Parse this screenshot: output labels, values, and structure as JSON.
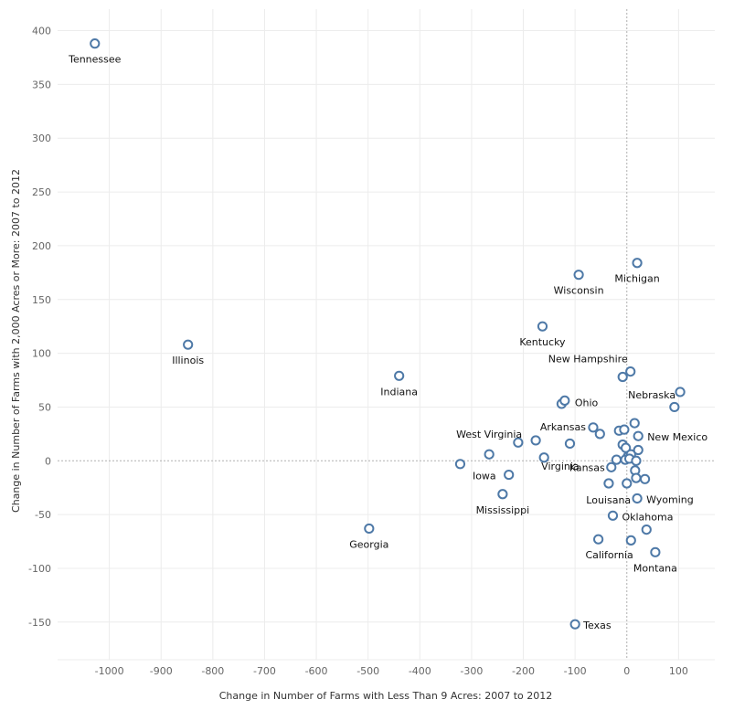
{
  "chart_data": {
    "type": "scatter",
    "title": "",
    "xlabel": "Change in Number of Farms with Less Than 9 Acres:  2007 to 2012",
    "ylabel": "Change in Number of Farms with 2,000 Acres or More:  2007 to 2012",
    "xlim": [
      -1100,
      170
    ],
    "ylim": [
      -185,
      420
    ],
    "xticks": [
      -1000,
      -900,
      -800,
      -700,
      -600,
      -500,
      -400,
      -300,
      -200,
      -100,
      0,
      100
    ],
    "yticks": [
      -150,
      -100,
      -50,
      0,
      50,
      100,
      150,
      200,
      250,
      300,
      350,
      400
    ],
    "grid": true,
    "marker_color": "#4e79a7",
    "points": [
      {
        "x": -1028,
        "y": 388,
        "label": "Tennessee"
      },
      {
        "x": -848,
        "y": 108,
        "label": "Illinois"
      },
      {
        "x": -440,
        "y": 79,
        "label": "Indiana"
      },
      {
        "x": -498,
        "y": -63,
        "label": "Georgia"
      },
      {
        "x": -322,
        "y": -3,
        "label": ""
      },
      {
        "x": -266,
        "y": 6,
        "label": "West Virginia"
      },
      {
        "x": -228,
        "y": -13,
        "label": "Iowa"
      },
      {
        "x": -240,
        "y": -31,
        "label": "Mississippi"
      },
      {
        "x": -210,
        "y": 17,
        "label": ""
      },
      {
        "x": -176,
        "y": 19,
        "label": ""
      },
      {
        "x": -160,
        "y": 3,
        "label": "Virginia"
      },
      {
        "x": -163,
        "y": 125,
        "label": "Kentucky"
      },
      {
        "x": -93,
        "y": 173,
        "label": "Wisconsin"
      },
      {
        "x": 20,
        "y": 184,
        "label": "Michigan"
      },
      {
        "x": -126,
        "y": 53,
        "label": ""
      },
      {
        "x": -120,
        "y": 56,
        "label": "Ohio"
      },
      {
        "x": -110,
        "y": 16,
        "label": ""
      },
      {
        "x": -65,
        "y": 31,
        "label": "Arkansas"
      },
      {
        "x": -52,
        "y": 25,
        "label": ""
      },
      {
        "x": -100,
        "y": -152,
        "label": "Texas"
      },
      {
        "x": -55,
        "y": -73,
        "label": "California"
      },
      {
        "x": -27,
        "y": -51,
        "label": "Oklahoma"
      },
      {
        "x": -35,
        "y": -21,
        "label": ""
      },
      {
        "x": -30,
        "y": -6,
        "label": "Kansas"
      },
      {
        "x": -20,
        "y": 1,
        "label": ""
      },
      {
        "x": -15,
        "y": 28,
        "label": ""
      },
      {
        "x": -5,
        "y": 29,
        "label": ""
      },
      {
        "x": -8,
        "y": 78,
        "label": "New Hampshire"
      },
      {
        "x": 7,
        "y": 83,
        "label": ""
      },
      {
        "x": -8,
        "y": 15,
        "label": ""
      },
      {
        "x": -2,
        "y": 12,
        "label": ""
      },
      {
        "x": 2,
        "y": 4,
        "label": ""
      },
      {
        "x": 8,
        "y": 6,
        "label": ""
      },
      {
        "x": -3,
        "y": 1,
        "label": ""
      },
      {
        "x": 5,
        "y": 2,
        "label": ""
      },
      {
        "x": 18,
        "y": 0,
        "label": ""
      },
      {
        "x": 22,
        "y": 10,
        "label": ""
      },
      {
        "x": 15,
        "y": 35,
        "label": ""
      },
      {
        "x": 22,
        "y": 23,
        "label": "New Mexico"
      },
      {
        "x": 16,
        "y": -9,
        "label": ""
      },
      {
        "x": 18,
        "y": -16,
        "label": ""
      },
      {
        "x": 35,
        "y": -17,
        "label": ""
      },
      {
        "x": 0,
        "y": -21,
        "label": "Louisana"
      },
      {
        "x": 20,
        "y": -35,
        "label": "Wyoming"
      },
      {
        "x": 38,
        "y": -64,
        "label": ""
      },
      {
        "x": 8,
        "y": -74,
        "label": ""
      },
      {
        "x": 55,
        "y": -85,
        "label": "Montana"
      },
      {
        "x": 92,
        "y": 50,
        "label": ""
      },
      {
        "x": 103,
        "y": 64,
        "label": "Nebraska"
      }
    ]
  }
}
